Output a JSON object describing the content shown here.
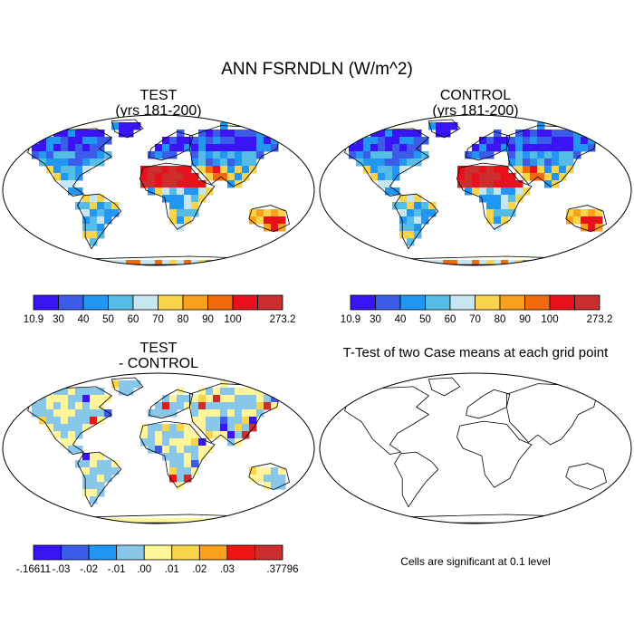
{
  "figure": {
    "title": "ANN FSRNDLN (W/m^2)"
  },
  "panels": {
    "test": {
      "title_line1": "TEST",
      "title_line2": "(yrs 181-200)"
    },
    "control": {
      "title_line1": "CONTROL",
      "title_line2": "(yrs 181-200)"
    },
    "diff": {
      "title_line1": "TEST",
      "title_line2": "- CONTROL"
    },
    "ttest": {
      "title": "T-Test of two Case means at each grid point",
      "note": "Cells are significant at 0.1 level"
    }
  },
  "colorbars": {
    "field": {
      "labels": [
        "10.9",
        "30",
        "40",
        "50",
        "60",
        "70",
        "80",
        "90",
        "100",
        "273.2"
      ],
      "colors": [
        "#3a14f5",
        "#3b5ce8",
        "#2196f3",
        "#55bce8",
        "#c6e6f2",
        "#f8d44a",
        "#f9a11a",
        "#f26b0b",
        "#e8101b",
        "#cc2d2d"
      ]
    },
    "diff": {
      "labels": [
        "-.16611",
        "-.03",
        "-.02",
        "-.01",
        ".00",
        ".01",
        ".02",
        ".03",
        ".37796"
      ],
      "colors": [
        "#3a14f5",
        "#3b5ce8",
        "#2196f3",
        "#88c6ea",
        "#fff59a",
        "#f8d44a",
        "#f9a11a",
        "#f01515",
        "#cc2d2d"
      ]
    }
  }
}
